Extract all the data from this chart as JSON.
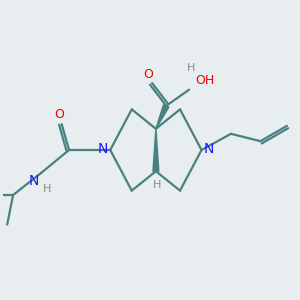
{
  "bg_color": "#e8edf0",
  "bond_color": "#4a8080",
  "n_color": "#1a1aff",
  "o_color": "#ee0000",
  "h_color": "#888888",
  "lw": 1.6,
  "xlim": [
    0,
    10
  ],
  "ylim": [
    0,
    10
  ]
}
